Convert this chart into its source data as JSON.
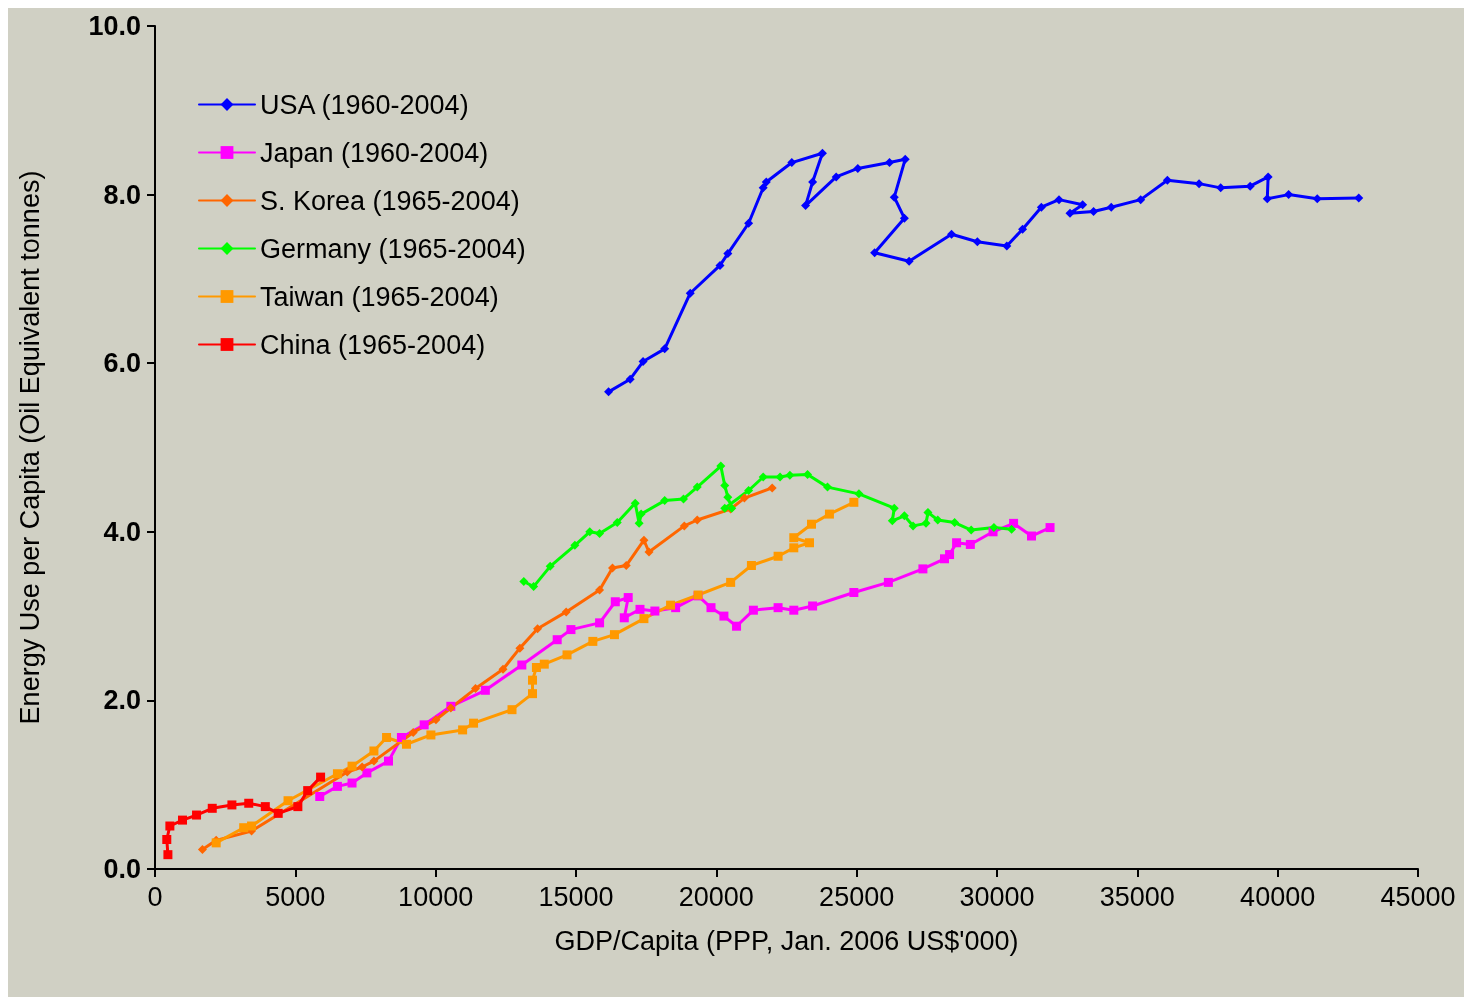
{
  "chart_data": {
    "type": "line",
    "xlabel": "GDP/Capita (PPP, Jan. 2006 US$'000)",
    "ylabel": "Energy Use per Capita (Oil Equivalent tonnes)",
    "xlim": [
      0,
      45000
    ],
    "xticks": [
      0,
      5000,
      10000,
      15000,
      20000,
      25000,
      30000,
      35000,
      40000,
      45000
    ],
    "ylim": [
      0,
      10
    ],
    "yticks": [
      {
        "value": 0,
        "label": "0.0"
      },
      {
        "value": 2,
        "label": "2.0"
      },
      {
        "value": 4,
        "label": "4.0"
      },
      {
        "value": 6,
        "label": "6.0"
      },
      {
        "value": 8,
        "label": "8.0"
      },
      {
        "value": 10,
        "label": "10.0"
      }
    ],
    "grid": false,
    "legend": "top left",
    "line_style": "solid",
    "series": [
      {
        "name": "USA (1960-2004)",
        "color": "#0000ff",
        "marker": "diamond",
        "x": [
          16160,
          16930,
          17390,
          18160,
          19070,
          20130,
          20410,
          21150,
          21670,
          21780,
          22690,
          23780,
          23430,
          23180,
          24270,
          25040,
          26170,
          26730,
          26340,
          26700,
          25640,
          26870,
          28380,
          29300,
          30350,
          30910,
          31580,
          32210,
          33050,
          32600,
          33440,
          34070,
          35120,
          36070,
          37200,
          37970,
          39020,
          39660,
          39630,
          40390,
          41410,
          42890
        ],
        "values": [
          5.66,
          5.81,
          6.02,
          6.17,
          6.83,
          7.16,
          7.3,
          7.66,
          8.08,
          8.15,
          8.38,
          8.49,
          8.15,
          7.87,
          8.21,
          8.31,
          8.38,
          8.42,
          7.97,
          7.72,
          7.31,
          7.21,
          7.53,
          7.44,
          7.39,
          7.59,
          7.85,
          7.94,
          7.88,
          7.78,
          7.8,
          7.85,
          7.94,
          8.17,
          8.13,
          8.08,
          8.1,
          8.21,
          7.95,
          8.0,
          7.95,
          7.96
        ]
      },
      {
        "name": "Japan (1960-2004)",
        "color": "#ff00ff",
        "marker": "square",
        "x": [
          5870,
          6500,
          7020,
          7550,
          8320,
          8780,
          9590,
          10540,
          11770,
          13070,
          14330,
          14820,
          15840,
          16400,
          16860,
          16720,
          17280,
          17810,
          18550,
          19350,
          19810,
          20270,
          20720,
          21320,
          22200,
          22760,
          23430,
          24900,
          26130,
          27360,
          28130,
          28310,
          28560,
          29050,
          29860,
          30590,
          31230,
          31890
        ],
        "values": [
          0.86,
          0.98,
          1.02,
          1.14,
          1.28,
          1.56,
          1.71,
          1.93,
          2.12,
          2.42,
          2.72,
          2.84,
          2.92,
          3.17,
          3.22,
          2.98,
          3.08,
          3.06,
          3.1,
          3.24,
          3.1,
          3.0,
          2.88,
          3.07,
          3.1,
          3.07,
          3.12,
          3.28,
          3.4,
          3.56,
          3.68,
          3.73,
          3.87,
          3.85,
          4.0,
          4.1,
          3.95,
          4.05
        ]
      },
      {
        "name": "S. Korea (1965-2004)",
        "color": "#ff6600",
        "marker": "diamond",
        "x": [
          1690,
          2180,
          3440,
          6850,
          7380,
          7800,
          9200,
          10010,
          10540,
          11420,
          12400,
          13000,
          13630,
          14650,
          15840,
          16300,
          16790,
          17420,
          17600,
          18860,
          19320,
          20510,
          21000,
          21990
        ],
        "values": [
          0.23,
          0.34,
          0.45,
          1.15,
          1.21,
          1.28,
          1.62,
          1.77,
          1.91,
          2.14,
          2.37,
          2.62,
          2.85,
          3.05,
          3.31,
          3.57,
          3.6,
          3.9,
          3.76,
          4.07,
          4.14,
          4.27,
          4.4,
          4.52
        ]
      },
      {
        "name": "Germany (1965-2004)",
        "color": "#00ff00",
        "marker": "diamond",
        "x": [
          13140,
          13490,
          14080,
          14960,
          15490,
          15840,
          16470,
          17110,
          17250,
          17320,
          18160,
          18830,
          19320,
          20160,
          20300,
          20410,
          20550,
          20300,
          21150,
          21670,
          22270,
          22620,
          23250,
          23960,
          25080,
          26340,
          26270,
          26700,
          27010,
          27470,
          27540,
          27890,
          28490,
          29080,
          29890,
          30520
        ],
        "values": [
          3.41,
          3.35,
          3.59,
          3.84,
          4.0,
          3.98,
          4.11,
          4.34,
          4.1,
          4.21,
          4.37,
          4.39,
          4.53,
          4.78,
          4.55,
          4.41,
          4.28,
          4.28,
          4.49,
          4.65,
          4.65,
          4.67,
          4.68,
          4.53,
          4.45,
          4.28,
          4.13,
          4.19,
          4.07,
          4.1,
          4.23,
          4.14,
          4.11,
          4.02,
          4.05,
          4.03
        ]
      },
      {
        "name": "Taiwan (1965-2004)",
        "color": "#ff9900",
        "marker": "square",
        "x": [
          2180,
          3160,
          3440,
          4740,
          6500,
          7020,
          7800,
          8250,
          8960,
          9830,
          10960,
          11350,
          12720,
          13450,
          13450,
          13590,
          13870,
          14680,
          15600,
          16370,
          17420,
          18370,
          19350,
          20510,
          21250,
          22200,
          22760,
          23320,
          22760,
          23390,
          24030,
          24900
        ],
        "values": [
          0.31,
          0.49,
          0.51,
          0.81,
          1.13,
          1.22,
          1.4,
          1.56,
          1.48,
          1.59,
          1.65,
          1.73,
          1.89,
          2.08,
          2.24,
          2.39,
          2.43,
          2.54,
          2.7,
          2.78,
          2.97,
          3.13,
          3.25,
          3.4,
          3.6,
          3.71,
          3.81,
          3.87,
          3.93,
          4.09,
          4.21,
          4.35
        ]
      },
      {
        "name": "China (1965-2004)",
        "color": "#ff0000",
        "marker": "square",
        "x": [
          460,
          420,
          530,
          980,
          1480,
          2040,
          2740,
          3340,
          3930,
          4390,
          5090,
          5440,
          5900
        ],
        "values": [
          0.17,
          0.35,
          0.51,
          0.58,
          0.64,
          0.72,
          0.76,
          0.78,
          0.74,
          0.66,
          0.74,
          0.93,
          1.09
        ]
      }
    ]
  }
}
